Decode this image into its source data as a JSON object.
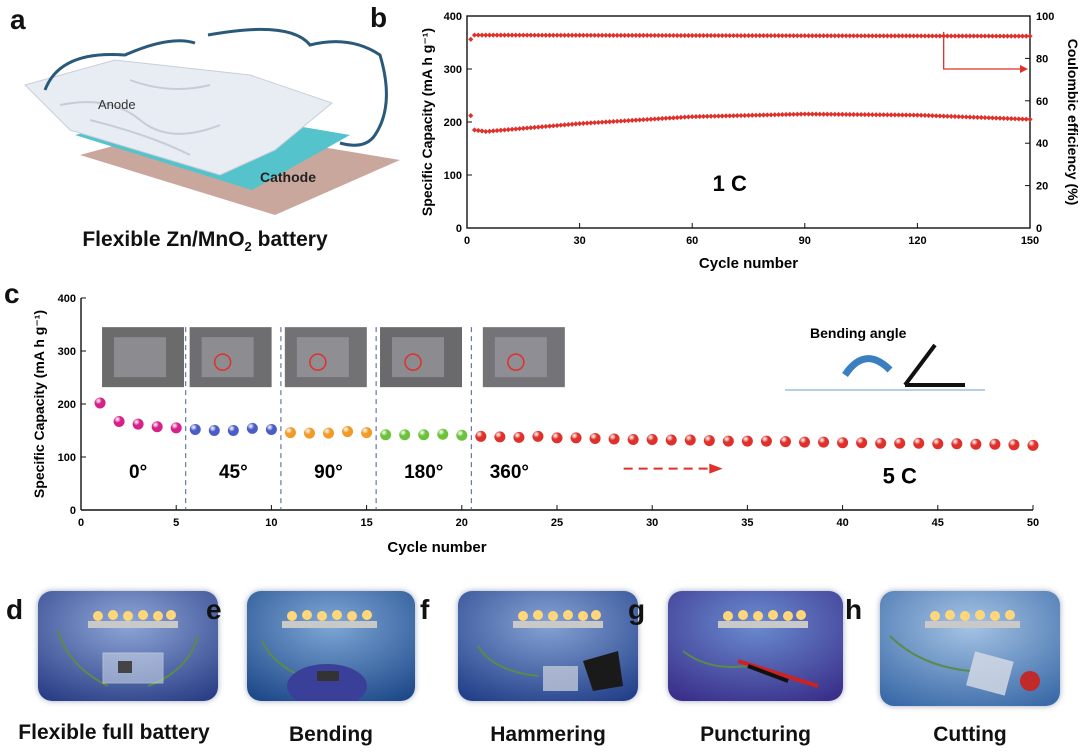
{
  "panels": {
    "a": {
      "letter": "a",
      "anode_label": "Anode",
      "cathode_label": "Cathode",
      "caption_prefix": "Flexible Zn/MnO",
      "caption_sub": "2",
      "caption_suffix": " battery"
    },
    "b": {
      "letter": "b"
    },
    "c": {
      "letter": "c"
    },
    "photos": [
      {
        "letter": "d",
        "caption": "Flexible full battery",
        "icon": "led-circuit-photo"
      },
      {
        "letter": "e",
        "caption": "Bending",
        "icon": "bending-photo"
      },
      {
        "letter": "f",
        "caption": "Hammering",
        "icon": "hammering-photo"
      },
      {
        "letter": "g",
        "caption": "Puncturing",
        "icon": "puncturing-photo"
      },
      {
        "letter": "h",
        "caption": "Cutting",
        "icon": "cutting-photo"
      }
    ]
  },
  "colors": {
    "red": "#e0302a",
    "magenta": "#d6208a",
    "blue": "#4a5cc8",
    "orange": "#f09a28",
    "green": "#6cc23a",
    "red_c": "#e0302a"
  },
  "chart_data": [
    {
      "type": "scatter",
      "title": "",
      "xlabel": "Cycle number",
      "ylabel_left": "Specific Capacity (mA h g⁻¹)",
      "ylabel_right": "Coulombic efficiency (%)",
      "xlim": [
        0,
        150
      ],
      "ylim_left": [
        0,
        400
      ],
      "ylim_right": [
        0,
        100
      ],
      "x_ticks": [
        0,
        30,
        60,
        90,
        120,
        150
      ],
      "y_ticks_left": [
        0,
        100,
        200,
        300,
        400
      ],
      "y_ticks_right": [
        0,
        20,
        40,
        60,
        80,
        100
      ],
      "annotation": "1 C",
      "series": [
        {
          "name": "Specific Capacity",
          "axis": "left",
          "marker": "diamond",
          "keypoints": [
            [
              1,
              212
            ],
            [
              2,
              185
            ],
            [
              5,
              182
            ],
            [
              30,
              197
            ],
            [
              60,
              210
            ],
            [
              90,
              215
            ],
            [
              120,
              213
            ],
            [
              150,
              205
            ]
          ]
        },
        {
          "name": "Coulombic efficiency",
          "axis": "right",
          "marker": "diamond",
          "keypoints": [
            [
              1,
              89
            ],
            [
              2,
              91
            ],
            [
              150,
              90.5
            ]
          ]
        }
      ]
    },
    {
      "type": "scatter",
      "title": "",
      "xlabel": "Cycle number",
      "ylabel": "Specific Capacity (mA h g⁻¹)",
      "xlim": [
        0,
        50
      ],
      "ylim": [
        0,
        400
      ],
      "x_ticks": [
        0,
        5,
        10,
        15,
        20,
        25,
        30,
        35,
        40,
        45,
        50
      ],
      "y_ticks": [
        0,
        100,
        200,
        300,
        400
      ],
      "annotation": "5 C",
      "inset_label": "Bending angle",
      "dividers": [
        5.5,
        10.5,
        15.5,
        20.5
      ],
      "series": [
        {
          "name": "0°",
          "label": "0°",
          "color": "magenta",
          "x": [
            1,
            2,
            3,
            4,
            5
          ],
          "y": [
            202,
            167,
            162,
            157,
            155
          ]
        },
        {
          "name": "45°",
          "label": "45°",
          "color": "blue",
          "x": [
            6,
            7,
            8,
            9,
            10
          ],
          "y": [
            152,
            150,
            150,
            154,
            152
          ]
        },
        {
          "name": "90°",
          "label": "90°",
          "color": "orange",
          "x": [
            11,
            12,
            13,
            14,
            15
          ],
          "y": [
            146,
            145,
            145,
            148,
            146
          ]
        },
        {
          "name": "180°",
          "label": "180°",
          "color": "green",
          "x": [
            16,
            17,
            18,
            19,
            20
          ],
          "y": [
            142,
            142,
            142,
            143,
            141
          ]
        },
        {
          "name": "360°",
          "label": "360°",
          "color": "red_c",
          "x": [
            21,
            22,
            23,
            24,
            25,
            26,
            27,
            28,
            29,
            30,
            31,
            32,
            33,
            34,
            35,
            36,
            37,
            38,
            39,
            40,
            41,
            42,
            43,
            44,
            45,
            46,
            47,
            48,
            49,
            50
          ],
          "y": [
            139,
            138,
            137,
            139,
            136,
            136,
            135,
            134,
            133,
            133,
            132,
            132,
            131,
            130,
            130,
            130,
            129,
            128,
            128,
            127,
            127,
            126,
            126,
            126,
            125,
            125,
            124,
            124,
            123,
            122
          ]
        }
      ]
    }
  ]
}
